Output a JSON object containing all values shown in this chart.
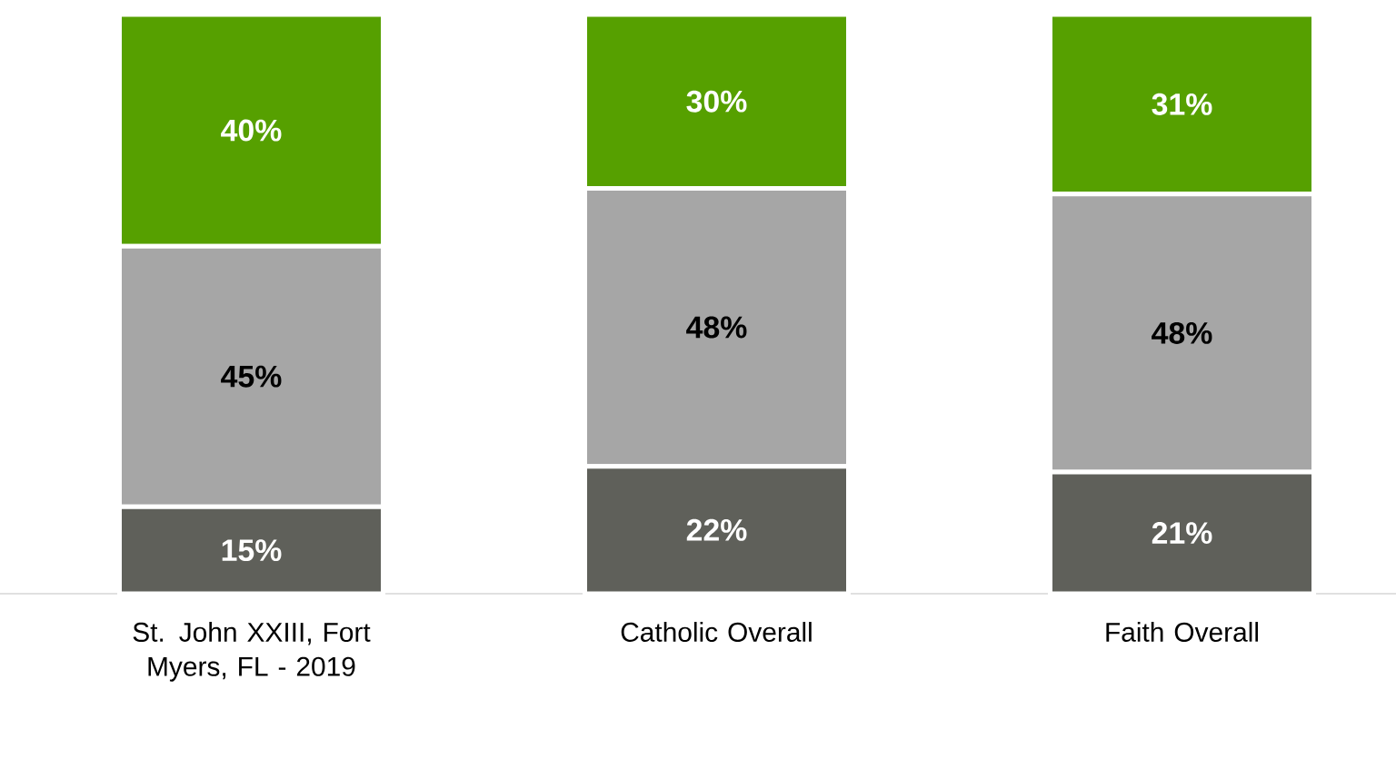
{
  "chart_data": {
    "type": "bar",
    "stacked": true,
    "categories": [
      "St. John XXIII, Fort Myers, FL - 2019",
      "Catholic Overall",
      "Faith Overall"
    ],
    "series": [
      {
        "color": "#5f605a",
        "values": [
          15,
          22,
          21
        ],
        "value_labels": [
          "15%",
          "22%",
          "21%"
        ]
      },
      {
        "color": "#a6a6a6",
        "values": [
          45,
          48,
          48
        ],
        "value_labels": [
          "45%",
          "48%",
          "48%"
        ]
      },
      {
        "color": "#56a000",
        "values": [
          40,
          30,
          31
        ],
        "value_labels": [
          "40%",
          "30%",
          "31%"
        ]
      }
    ]
  }
}
